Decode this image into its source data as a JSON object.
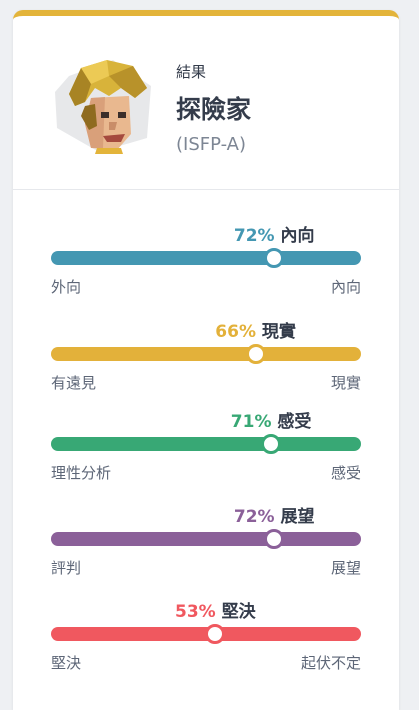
{
  "result": {
    "label": "結果",
    "type_name": "探險家",
    "type_code": "(ISFP-A)",
    "accent_color": "#e3b43a"
  },
  "avatar": {
    "icon": "blond-explorer-avatar-icon"
  },
  "traits": [
    {
      "percent": 72,
      "percent_text": "72%",
      "title": "內向",
      "left": "外向",
      "right": "內向",
      "color": "#4497b2"
    },
    {
      "percent": 66,
      "percent_text": "66%",
      "title": "現實",
      "left": "有遠見",
      "right": "現實",
      "color": "#e3b13a"
    },
    {
      "percent": 71,
      "percent_text": "71%",
      "title": "感受",
      "left": "理性分析",
      "right": "感受",
      "color": "#38a875"
    },
    {
      "percent": 72,
      "percent_text": "72%",
      "title": "展望",
      "left": "評判",
      "right": "展望",
      "color": "#8b6099"
    },
    {
      "percent": 53,
      "percent_text": "53%",
      "title": "堅決",
      "left": "堅決",
      "right": "起伏不定",
      "color": "#f0585f"
    }
  ]
}
